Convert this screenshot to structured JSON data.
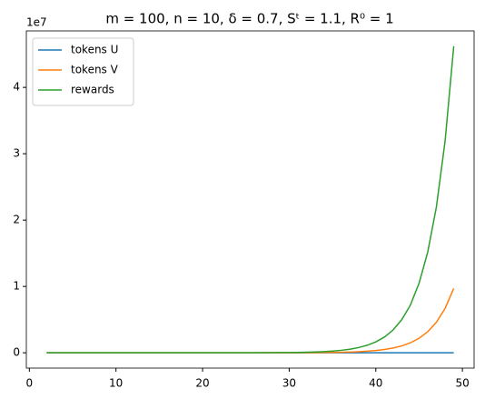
{
  "chart_data": {
    "type": "line",
    "title": "m = 100, n = 10, δ = 0.7, Sᵗ = 1.1, R⁰ = 1",
    "x": [
      2,
      3,
      4,
      5,
      6,
      7,
      8,
      9,
      10,
      11,
      12,
      13,
      14,
      15,
      16,
      17,
      18,
      19,
      20,
      21,
      22,
      23,
      24,
      25,
      26,
      27,
      28,
      29,
      30,
      31,
      32,
      33,
      34,
      35,
      36,
      37,
      38,
      39,
      40,
      41,
      42,
      43,
      44,
      45,
      46,
      47,
      48,
      49
    ],
    "series": [
      {
        "name": "tokens U",
        "color": "#1f77b4",
        "values": [
          100,
          100,
          100,
          100,
          100,
          100,
          100,
          100,
          100,
          100,
          100,
          100,
          100,
          100,
          100,
          100,
          100,
          100,
          100,
          100,
          100,
          100,
          100,
          100,
          100,
          100,
          100,
          100,
          100,
          100,
          100,
          100,
          100,
          100,
          100,
          100,
          100,
          100,
          100,
          100,
          100,
          100,
          100,
          100,
          100,
          100,
          100,
          100
        ]
      },
      {
        "name": "tokens V",
        "color": "#ff7f0e",
        "values": [
          1,
          1,
          1,
          1,
          1,
          2,
          2,
          3,
          5,
          7,
          10,
          15,
          22,
          32,
          46,
          66,
          96,
          140,
          200,
          290,
          430,
          620,
          900,
          1300,
          1900,
          2700,
          3900,
          5700,
          8300,
          12000,
          17500,
          25000,
          37000,
          53000,
          77000,
          112000,
          163000,
          236000,
          342000,
          496000,
          720000,
          1040000,
          1510000,
          2190000,
          3180000,
          4610000,
          6700000,
          9700000
        ]
      },
      {
        "name": "rewards",
        "color": "#2ca02c",
        "values": [
          1,
          2,
          3,
          4,
          5,
          8,
          11,
          16,
          23,
          34,
          50,
          72,
          100,
          150,
          220,
          320,
          460,
          670,
          970,
          1400,
          2000,
          3000,
          4300,
          6200,
          9000,
          13100,
          19000,
          27500,
          40000,
          58000,
          84000,
          121000,
          176000,
          255000,
          370000,
          537000,
          779000,
          1130000,
          1640000,
          2370000,
          3440000,
          5000000,
          7200000,
          10500000,
          15200000,
          22000000,
          31900000,
          46200000
        ]
      }
    ],
    "xlim": [
      -0.35,
      51.35
    ],
    "xticks": [
      0,
      10,
      20,
      30,
      40,
      50
    ],
    "ylim": [
      -2310000,
      48510000
    ],
    "yticks": [
      {
        "value": 0,
        "label": "0"
      },
      {
        "value": 10000000,
        "label": "1"
      },
      {
        "value": 20000000,
        "label": "2"
      },
      {
        "value": 30000000,
        "label": "3"
      },
      {
        "value": 40000000,
        "label": "4"
      }
    ],
    "y_offset_label": "1e7",
    "legend": "upper left",
    "grid": false
  }
}
